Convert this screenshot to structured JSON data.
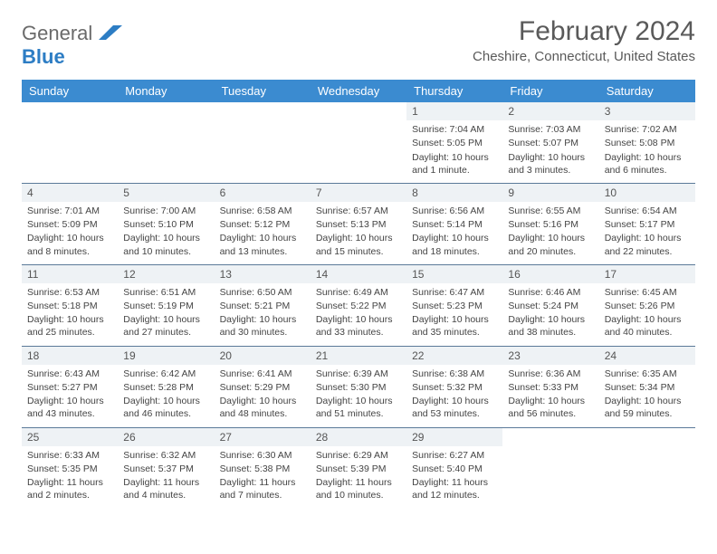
{
  "brand": {
    "part1": "General",
    "part2": "Blue"
  },
  "title": "February 2024",
  "location": "Cheshire, Connecticut, United States",
  "colors": {
    "header_bg": "#3b8bd0",
    "header_text": "#ffffff",
    "daynum_bg": "#eef2f5",
    "border": "#5b7a99",
    "logo_gray": "#6a6a6a",
    "logo_blue": "#2d7dc4"
  },
  "weekdays": [
    "Sunday",
    "Monday",
    "Tuesday",
    "Wednesday",
    "Thursday",
    "Friday",
    "Saturday"
  ],
  "weeks": [
    [
      {
        "n": "",
        "sr": "",
        "ss": "",
        "dl": "",
        "empty": true
      },
      {
        "n": "",
        "sr": "",
        "ss": "",
        "dl": "",
        "empty": true
      },
      {
        "n": "",
        "sr": "",
        "ss": "",
        "dl": "",
        "empty": true
      },
      {
        "n": "",
        "sr": "",
        "ss": "",
        "dl": "",
        "empty": true
      },
      {
        "n": "1",
        "sr": "Sunrise: 7:04 AM",
        "ss": "Sunset: 5:05 PM",
        "dl": "Daylight: 10 hours and 1 minute."
      },
      {
        "n": "2",
        "sr": "Sunrise: 7:03 AM",
        "ss": "Sunset: 5:07 PM",
        "dl": "Daylight: 10 hours and 3 minutes."
      },
      {
        "n": "3",
        "sr": "Sunrise: 7:02 AM",
        "ss": "Sunset: 5:08 PM",
        "dl": "Daylight: 10 hours and 6 minutes."
      }
    ],
    [
      {
        "n": "4",
        "sr": "Sunrise: 7:01 AM",
        "ss": "Sunset: 5:09 PM",
        "dl": "Daylight: 10 hours and 8 minutes."
      },
      {
        "n": "5",
        "sr": "Sunrise: 7:00 AM",
        "ss": "Sunset: 5:10 PM",
        "dl": "Daylight: 10 hours and 10 minutes."
      },
      {
        "n": "6",
        "sr": "Sunrise: 6:58 AM",
        "ss": "Sunset: 5:12 PM",
        "dl": "Daylight: 10 hours and 13 minutes."
      },
      {
        "n": "7",
        "sr": "Sunrise: 6:57 AM",
        "ss": "Sunset: 5:13 PM",
        "dl": "Daylight: 10 hours and 15 minutes."
      },
      {
        "n": "8",
        "sr": "Sunrise: 6:56 AM",
        "ss": "Sunset: 5:14 PM",
        "dl": "Daylight: 10 hours and 18 minutes."
      },
      {
        "n": "9",
        "sr": "Sunrise: 6:55 AM",
        "ss": "Sunset: 5:16 PM",
        "dl": "Daylight: 10 hours and 20 minutes."
      },
      {
        "n": "10",
        "sr": "Sunrise: 6:54 AM",
        "ss": "Sunset: 5:17 PM",
        "dl": "Daylight: 10 hours and 22 minutes."
      }
    ],
    [
      {
        "n": "11",
        "sr": "Sunrise: 6:53 AM",
        "ss": "Sunset: 5:18 PM",
        "dl": "Daylight: 10 hours and 25 minutes."
      },
      {
        "n": "12",
        "sr": "Sunrise: 6:51 AM",
        "ss": "Sunset: 5:19 PM",
        "dl": "Daylight: 10 hours and 27 minutes."
      },
      {
        "n": "13",
        "sr": "Sunrise: 6:50 AM",
        "ss": "Sunset: 5:21 PM",
        "dl": "Daylight: 10 hours and 30 minutes."
      },
      {
        "n": "14",
        "sr": "Sunrise: 6:49 AM",
        "ss": "Sunset: 5:22 PM",
        "dl": "Daylight: 10 hours and 33 minutes."
      },
      {
        "n": "15",
        "sr": "Sunrise: 6:47 AM",
        "ss": "Sunset: 5:23 PM",
        "dl": "Daylight: 10 hours and 35 minutes."
      },
      {
        "n": "16",
        "sr": "Sunrise: 6:46 AM",
        "ss": "Sunset: 5:24 PM",
        "dl": "Daylight: 10 hours and 38 minutes."
      },
      {
        "n": "17",
        "sr": "Sunrise: 6:45 AM",
        "ss": "Sunset: 5:26 PM",
        "dl": "Daylight: 10 hours and 40 minutes."
      }
    ],
    [
      {
        "n": "18",
        "sr": "Sunrise: 6:43 AM",
        "ss": "Sunset: 5:27 PM",
        "dl": "Daylight: 10 hours and 43 minutes."
      },
      {
        "n": "19",
        "sr": "Sunrise: 6:42 AM",
        "ss": "Sunset: 5:28 PM",
        "dl": "Daylight: 10 hours and 46 minutes."
      },
      {
        "n": "20",
        "sr": "Sunrise: 6:41 AM",
        "ss": "Sunset: 5:29 PM",
        "dl": "Daylight: 10 hours and 48 minutes."
      },
      {
        "n": "21",
        "sr": "Sunrise: 6:39 AM",
        "ss": "Sunset: 5:30 PM",
        "dl": "Daylight: 10 hours and 51 minutes."
      },
      {
        "n": "22",
        "sr": "Sunrise: 6:38 AM",
        "ss": "Sunset: 5:32 PM",
        "dl": "Daylight: 10 hours and 53 minutes."
      },
      {
        "n": "23",
        "sr": "Sunrise: 6:36 AM",
        "ss": "Sunset: 5:33 PM",
        "dl": "Daylight: 10 hours and 56 minutes."
      },
      {
        "n": "24",
        "sr": "Sunrise: 6:35 AM",
        "ss": "Sunset: 5:34 PM",
        "dl": "Daylight: 10 hours and 59 minutes."
      }
    ],
    [
      {
        "n": "25",
        "sr": "Sunrise: 6:33 AM",
        "ss": "Sunset: 5:35 PM",
        "dl": "Daylight: 11 hours and 2 minutes."
      },
      {
        "n": "26",
        "sr": "Sunrise: 6:32 AM",
        "ss": "Sunset: 5:37 PM",
        "dl": "Daylight: 11 hours and 4 minutes."
      },
      {
        "n": "27",
        "sr": "Sunrise: 6:30 AM",
        "ss": "Sunset: 5:38 PM",
        "dl": "Daylight: 11 hours and 7 minutes."
      },
      {
        "n": "28",
        "sr": "Sunrise: 6:29 AM",
        "ss": "Sunset: 5:39 PM",
        "dl": "Daylight: 11 hours and 10 minutes."
      },
      {
        "n": "29",
        "sr": "Sunrise: 6:27 AM",
        "ss": "Sunset: 5:40 PM",
        "dl": "Daylight: 11 hours and 12 minutes."
      },
      {
        "n": "",
        "sr": "",
        "ss": "",
        "dl": "",
        "empty": true
      },
      {
        "n": "",
        "sr": "",
        "ss": "",
        "dl": "",
        "empty": true
      }
    ]
  ]
}
